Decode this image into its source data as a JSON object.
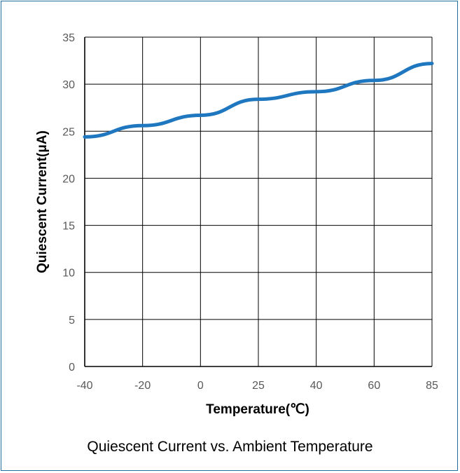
{
  "chart_data": {
    "type": "line",
    "caption": "Quiescent Current vs. Ambient Temperature",
    "xlabel": "Temperature(℃)",
    "ylabel": "Quiescent Current(μA)",
    "x_ticks": [
      "-40",
      "-20",
      "0",
      "25",
      "40",
      "60",
      "85"
    ],
    "y_ticks": [
      "0",
      "5",
      "10",
      "15",
      "20",
      "25",
      "30",
      "35"
    ],
    "ylim": [
      0,
      35
    ],
    "grid": true,
    "series": [
      {
        "x": [
          -40,
          -20,
          0,
          25,
          40,
          60,
          85
        ],
        "values": [
          24.4,
          25.6,
          26.7,
          28.4,
          29.2,
          30.4,
          32.2
        ],
        "color": "#1f77c0"
      }
    ]
  }
}
